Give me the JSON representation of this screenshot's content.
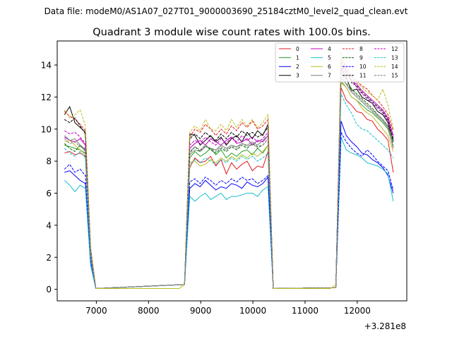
{
  "figure": {
    "suptitle": "Data file: modeM0/AS1A07_027T01_9000003690_25184cztM0_level2_quad_clean.evt"
  },
  "chart_data": {
    "type": "line",
    "title": "Quadrant 3 module wise count rates with 100.0s bins.",
    "xlabel": "",
    "ylabel": "",
    "x_offset_label": "+3.281e8",
    "xlim": [
      6250,
      12950
    ],
    "ylim": [
      -0.72,
      15.5
    ],
    "xticks": [
      7000,
      8000,
      9000,
      10000,
      11000,
      12000
    ],
    "yticks": [
      0,
      2,
      4,
      6,
      8,
      10,
      12,
      14
    ],
    "grid": false,
    "legend": {
      "placement": "top-right",
      "columns": 4
    },
    "segments": [
      {
        "x": [
          6390,
          6490,
          6590,
          6690,
          6790,
          6890,
          6990
        ]
      },
      {
        "x": [
          8690,
          8790,
          8890,
          8990,
          9090,
          9190,
          9290,
          9390,
          9490,
          9590,
          9690,
          9790,
          9890,
          9990,
          10090,
          10190,
          10290,
          10390
        ]
      },
      {
        "x": [
          11590,
          11690,
          11790,
          11890,
          11990,
          12090,
          12190,
          12290,
          12390,
          12490,
          12590,
          12690
        ]
      }
    ],
    "gaps": [
      {
        "x": [
          6990,
          7090,
          8590,
          8690
        ]
      },
      {
        "x": [
          10390,
          10490,
          11490,
          11590
        ]
      }
    ],
    "series": [
      {
        "name": "0",
        "color": "#e41a1c",
        "dash": false,
        "segments": [
          [
            8.5,
            8.6,
            8.4,
            8.5,
            8.3,
            2.0,
            0.05
          ],
          [
            0.3,
            7.6,
            8.2,
            7.9,
            8.0,
            8.3,
            7.7,
            8.1,
            7.2,
            7.9,
            7.5,
            7.8,
            8.0,
            7.4,
            7.7,
            7.6,
            8.6,
            0.05
          ],
          [
            0.1,
            12.6,
            11.8,
            11.5,
            11.1,
            11.0,
            10.6,
            10.5,
            10.0,
            9.7,
            9.3,
            7.3
          ]
        ]
      },
      {
        "name": "1",
        "color": "#2ca02c",
        "dash": false,
        "segments": [
          [
            9.0,
            8.9,
            8.8,
            8.7,
            8.5,
            2.2,
            0.05
          ],
          [
            0.3,
            8.2,
            8.6,
            8.3,
            8.5,
            8.8,
            8.4,
            8.7,
            8.2,
            8.5,
            8.3,
            8.6,
            8.7,
            8.4,
            8.8,
            8.5,
            9.0,
            0.05
          ],
          [
            0.1,
            13.0,
            12.6,
            12.0,
            11.8,
            11.5,
            11.2,
            11.0,
            10.7,
            10.4,
            10.0,
            8.9
          ]
        ]
      },
      {
        "name": "2",
        "color": "#0000ff",
        "dash": false,
        "segments": [
          [
            7.3,
            7.4,
            7.1,
            6.8,
            6.6,
            1.6,
            0.05
          ],
          [
            0.3,
            6.3,
            6.6,
            6.4,
            6.8,
            6.5,
            6.2,
            6.4,
            6.3,
            6.6,
            6.5,
            6.3,
            6.7,
            6.5,
            6.4,
            6.6,
            7.0,
            0.05
          ],
          [
            0.1,
            10.5,
            9.6,
            9.2,
            8.9,
            8.5,
            8.4,
            8.1,
            7.9,
            7.6,
            7.1,
            6.0
          ]
        ]
      },
      {
        "name": "3",
        "color": "#000000",
        "dash": false,
        "segments": [
          [
            10.9,
            11.4,
            10.4,
            10.1,
            9.8,
            2.5,
            0.05
          ],
          [
            0.3,
            9.7,
            9.6,
            9.0,
            9.3,
            9.6,
            9.2,
            9.5,
            9.0,
            9.4,
            9.6,
            9.2,
            9.8,
            9.4,
            9.9,
            9.6,
            10.3,
            0.05
          ],
          [
            0.1,
            13.8,
            13.2,
            12.4,
            12.5,
            12.0,
            11.8,
            11.6,
            11.1,
            10.9,
            10.4,
            9.2
          ]
        ]
      },
      {
        "name": "4",
        "color": "#bf00bf",
        "dash": false,
        "segments": [
          [
            9.5,
            9.3,
            9.2,
            9.4,
            9.0,
            2.3,
            0.05
          ],
          [
            0.3,
            8.8,
            9.1,
            9.3,
            9.0,
            9.4,
            9.2,
            9.0,
            9.3,
            9.5,
            9.1,
            9.2,
            9.4,
            9.0,
            9.3,
            9.2,
            9.6,
            0.05
          ],
          [
            0.1,
            14.0,
            13.6,
            13.0,
            12.8,
            12.4,
            12.1,
            11.8,
            11.5,
            11.2,
            10.7,
            9.6
          ]
        ]
      },
      {
        "name": "5",
        "color": "#17becf",
        "dash": false,
        "segments": [
          [
            6.8,
            6.5,
            6.1,
            6.5,
            6.3,
            1.5,
            0.05
          ],
          [
            0.3,
            5.8,
            5.5,
            5.8,
            6.0,
            5.6,
            5.8,
            6.0,
            5.6,
            5.8,
            5.8,
            5.9,
            6.0,
            6.0,
            5.8,
            6.2,
            6.4,
            0.05
          ],
          [
            0.1,
            9.5,
            8.7,
            8.5,
            8.4,
            8.2,
            7.9,
            7.8,
            7.7,
            7.5,
            7.2,
            5.5
          ]
        ]
      },
      {
        "name": "6",
        "color": "#bcbd22",
        "dash": false,
        "segments": [
          [
            9.2,
            9.3,
            9.0,
            8.7,
            8.4,
            2.1,
            0.05
          ],
          [
            0.3,
            7.9,
            8.0,
            7.7,
            7.8,
            8.1,
            7.9,
            8.2,
            8.0,
            8.3,
            8.1,
            8.4,
            8.2,
            8.5,
            8.3,
            8.6,
            9.0,
            0.05
          ],
          [
            0.1,
            12.9,
            12.6,
            12.0,
            11.8,
            11.3,
            11.0,
            10.8,
            10.4,
            10.0,
            9.6,
            8.6
          ]
        ]
      },
      {
        "name": "7",
        "color": "#7f7f7f",
        "dash": false,
        "segments": [
          [
            9.6,
            9.3,
            9.4,
            9.0,
            8.6,
            2.2,
            0.05
          ],
          [
            0.3,
            8.4,
            8.7,
            8.6,
            8.9,
            8.8,
            8.7,
            9.0,
            8.8,
            9.0,
            8.9,
            9.1,
            9.0,
            9.2,
            9.0,
            9.3,
            9.6,
            0.05
          ],
          [
            0.1,
            13.2,
            12.8,
            12.3,
            12.0,
            11.7,
            11.4,
            11.1,
            10.8,
            10.5,
            10.1,
            8.8
          ]
        ]
      },
      {
        "name": "8",
        "color": "#e41a1c",
        "dash": true,
        "segments": [
          [
            11.1,
            10.8,
            10.6,
            10.3,
            9.9,
            2.6,
            0.05
          ],
          [
            0.3,
            9.5,
            10.0,
            9.8,
            10.3,
            10.0,
            9.6,
            10.0,
            9.7,
            10.2,
            9.9,
            10.4,
            10.1,
            10.5,
            10.0,
            10.2,
            10.6,
            0.05
          ],
          [
            0.1,
            14.4,
            13.9,
            13.3,
            13.0,
            12.7,
            12.5,
            12.1,
            11.8,
            11.4,
            10.9,
            9.9
          ]
        ]
      },
      {
        "name": "9",
        "color": "#006400",
        "dash": true,
        "segments": [
          [
            9.1,
            8.8,
            8.6,
            9.0,
            8.7,
            2.2,
            0.05
          ],
          [
            0.3,
            8.5,
            8.9,
            8.6,
            9.0,
            8.7,
            8.5,
            8.8,
            8.6,
            8.9,
            8.7,
            9.0,
            8.8,
            9.1,
            8.9,
            9.0,
            9.4,
            0.05
          ],
          [
            0.1,
            13.5,
            13.1,
            12.5,
            12.2,
            11.9,
            11.6,
            11.3,
            10.9,
            10.6,
            10.2,
            9.3
          ]
        ]
      },
      {
        "name": "10",
        "color": "#0000ff",
        "dash": true,
        "segments": [
          [
            7.5,
            7.8,
            7.3,
            7.5,
            7.1,
            1.8,
            0.05
          ],
          [
            0.3,
            6.7,
            6.9,
            6.6,
            7.0,
            6.8,
            6.5,
            6.8,
            6.6,
            6.9,
            6.7,
            7.0,
            6.8,
            6.9,
            6.6,
            6.8,
            7.1,
            0.05
          ],
          [
            0.1,
            9.8,
            9.2,
            8.8,
            8.5,
            8.3,
            8.7,
            8.4,
            8.0,
            7.7,
            7.4,
            6.2
          ]
        ]
      },
      {
        "name": "11",
        "color": "#000000",
        "dash": true,
        "segments": [
          [
            10.6,
            10.4,
            10.7,
            10.2,
            9.7,
            2.4,
            0.05
          ],
          [
            0.3,
            9.4,
            9.7,
            9.4,
            9.8,
            9.5,
            9.3,
            9.7,
            9.4,
            9.8,
            9.5,
            9.9,
            9.6,
            9.8,
            9.5,
            9.7,
            10.1,
            0.05
          ],
          [
            0.1,
            14.2,
            13.7,
            12.9,
            12.7,
            12.3,
            12.0,
            11.7,
            11.4,
            11.1,
            10.6,
            9.4
          ]
        ]
      },
      {
        "name": "12",
        "color": "#bf00bf",
        "dash": true,
        "segments": [
          [
            9.9,
            9.7,
            9.8,
            9.5,
            9.1,
            2.3,
            0.05
          ],
          [
            0.3,
            9.0,
            9.3,
            9.1,
            9.5,
            9.2,
            9.0,
            9.4,
            9.1,
            9.5,
            9.2,
            9.6,
            9.3,
            9.5,
            9.2,
            9.4,
            9.8,
            0.05
          ],
          [
            0.1,
            13.9,
            13.5,
            13.1,
            12.6,
            12.2,
            11.9,
            11.6,
            11.3,
            11.0,
            10.5,
            9.5
          ]
        ]
      },
      {
        "name": "13",
        "color": "#17becf",
        "dash": true,
        "segments": [
          [
            8.8,
            8.5,
            8.3,
            8.6,
            8.2,
            2.0,
            0.05
          ],
          [
            0.3,
            7.8,
            8.1,
            7.9,
            8.2,
            8.0,
            7.8,
            8.1,
            7.9,
            8.2,
            8.0,
            8.3,
            8.1,
            8.3,
            8.0,
            8.2,
            8.5,
            0.05
          ],
          [
            0.1,
            12.2,
            11.5,
            11.0,
            10.3,
            10.0,
            9.9,
            9.6,
            9.3,
            9.0,
            8.7,
            8.2
          ]
        ]
      },
      {
        "name": "14",
        "color": "#bcbd22",
        "dash": true,
        "segments": [
          [
            11.2,
            10.7,
            10.9,
            11.2,
            10.2,
            2.6,
            0.05
          ],
          [
            0.3,
            9.8,
            10.2,
            9.9,
            10.6,
            10.0,
            9.9,
            10.3,
            9.9,
            10.6,
            10.1,
            10.6,
            10.2,
            10.6,
            10.1,
            10.4,
            10.9,
            0.05
          ],
          [
            0.1,
            14.8,
            13.6,
            13.2,
            12.9,
            12.6,
            12.3,
            12.1,
            11.8,
            12.5,
            11.5,
            10.0
          ]
        ]
      },
      {
        "name": "15",
        "color": "#7f7f7f",
        "dash": true,
        "segments": [
          [
            9.4,
            9.1,
            9.2,
            8.9,
            8.8,
            2.2,
            0.05
          ],
          [
            0.3,
            8.6,
            8.9,
            8.7,
            9.0,
            8.8,
            8.6,
            8.9,
            8.7,
            9.0,
            8.8,
            9.1,
            8.9,
            9.1,
            8.8,
            9.0,
            9.4,
            0.05
          ],
          [
            0.1,
            13.3,
            12.9,
            12.4,
            12.1,
            11.8,
            11.5,
            11.2,
            10.9,
            10.6,
            10.2,
            9.0
          ]
        ]
      }
    ]
  }
}
